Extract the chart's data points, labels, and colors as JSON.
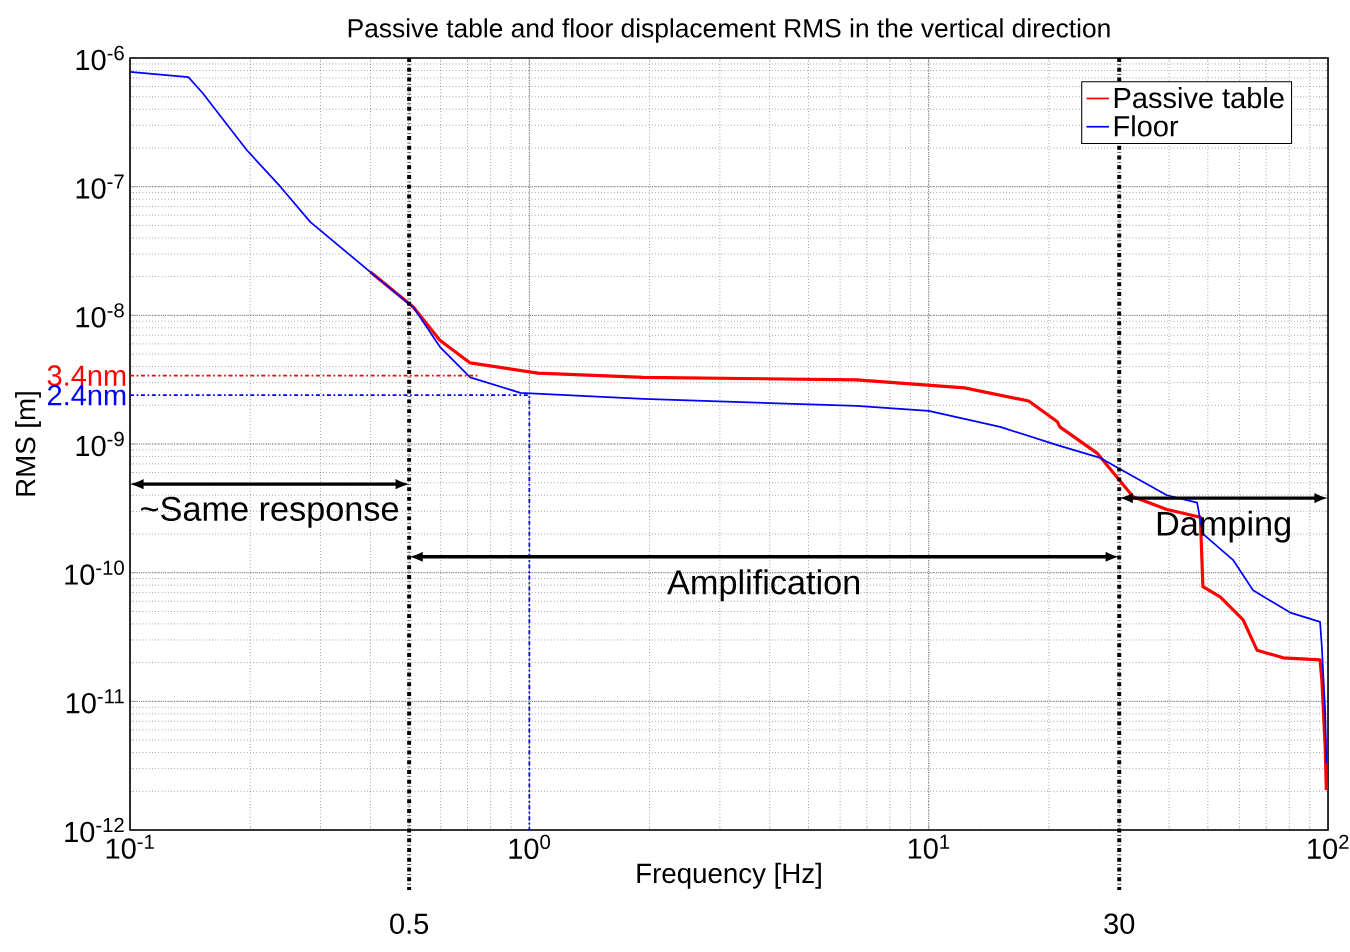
{
  "chart_data": {
    "type": "line",
    "title": "Passive table and floor displacement RMS in the vertical direction",
    "xlabel": "Frequency [Hz]",
    "ylabel": "RMS [m]",
    "log": "xy",
    "grid": true,
    "legend": "top right",
    "xlim": [
      0.1,
      100
    ],
    "ylim": [
      1e-12,
      1e-06
    ],
    "xticks": [
      {
        "value": 0.1,
        "label": "10$^{-1}$"
      },
      {
        "value": 1,
        "label": "10$^{0}$"
      },
      {
        "value": 10,
        "label": "10$^{1}$"
      },
      {
        "value": 100,
        "label": "10$^{2}$"
      }
    ],
    "yticks": [
      {
        "value": 1e-12,
        "label": "10$^{-12}$"
      },
      {
        "value": 1e-11,
        "label": "10$^{-11}$"
      },
      {
        "value": 1e-10,
        "label": "10$^{-10}$"
      },
      {
        "value": 1e-09,
        "label": "10$^{-9}$"
      },
      {
        "value": 1e-08,
        "label": "10$^{-8}$"
      },
      {
        "value": 1e-07,
        "label": "10$^{-7}$"
      },
      {
        "value": 1e-06,
        "label": "10$^{-6}$"
      }
    ],
    "series": [
      {
        "name": "Passive table",
        "color": "#ff0000",
        "x": [
          0.4,
          0.512,
          0.597,
          0.711,
          1.05,
          1.93,
          6.6,
          12.3,
          17.8,
          21,
          21.3,
          26.4,
          32.5,
          39.5,
          47.9,
          48.6,
          53.7,
          61.3,
          66.4,
          77.2,
          95.5,
          96.5,
          98.4,
          99
        ],
        "values": [
          2.17e-08,
          1.16e-08,
          6.4e-09,
          4.27e-09,
          3.56e-09,
          3.3e-09,
          3.15e-09,
          2.73e-09,
          2.16e-09,
          1.49e-09,
          1.36e-09,
          8.5e-10,
          3.9e-10,
          3.1e-10,
          2.7e-10,
          7.8e-11,
          6.5e-11,
          4.3e-11,
          2.5e-11,
          2.18e-11,
          2.1e-11,
          1.47e-11,
          4.4e-12,
          2.05e-12
        ]
      },
      {
        "name": "Floor",
        "color": "#0000ff",
        "x": [
          0.1,
          0.14,
          0.152,
          0.196,
          0.238,
          0.283,
          0.4,
          0.512,
          0.597,
          0.711,
          0.95,
          1.93,
          6.6,
          10,
          15.1,
          21,
          26.9,
          39.5,
          47,
          48.6,
          57.8,
          64.9,
          80.4,
          95.5,
          96.5,
          98.4,
          99
        ],
        "values": [
          7.8e-07,
          7.1e-07,
          5.35e-07,
          1.93e-07,
          1e-07,
          5.3e-08,
          2.17e-08,
          1.16e-08,
          5.7e-09,
          3.3e-09,
          2.5e-09,
          2.24e-09,
          1.98e-09,
          1.81e-09,
          1.36e-09,
          9.8e-10,
          7.8e-10,
          4e-10,
          3.5e-10,
          2e-10,
          1.26e-10,
          7.3e-11,
          4.9e-11,
          4.15e-11,
          2.65e-11,
          8.1e-12,
          3.3e-12
        ]
      },
      {
        "name": "3.4nm",
        "color": "#ff0000",
        "line_style": "dashed",
        "x": [
          0.1,
          0.75
        ],
        "values": [
          3.4e-09,
          3.4e-09
        ]
      },
      {
        "name": "2.4nm",
        "color": "#0000ff",
        "line_style": "dashed",
        "x": [
          0.1,
          1,
          1
        ],
        "values": [
          2.4e-09,
          2.4e-09,
          1e-12
        ]
      }
    ],
    "ref_lines": [
      {
        "axis": "x",
        "value": 0.5,
        "label": "0.5",
        "color": "#000000",
        "line_style": "dashed"
      },
      {
        "axis": "x",
        "value": 30,
        "label": "30",
        "color": "#000000",
        "line_style": "dashed"
      }
    ],
    "annotations": [
      "~Same response",
      "Amplification",
      "Damping"
    ]
  }
}
